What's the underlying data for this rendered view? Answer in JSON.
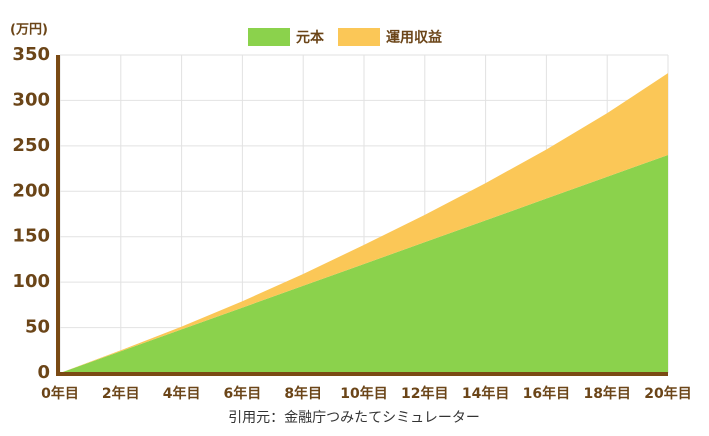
{
  "chart_data": {
    "type": "stacked-area",
    "y_axis_label": "(万円)",
    "caption": "引用元：金融庁つみたてシミュレーター",
    "x": [
      0,
      2,
      4,
      6,
      8,
      10,
      12,
      14,
      16,
      18,
      20
    ],
    "xlim": [
      0,
      20
    ],
    "xticks": [
      {
        "value": 0,
        "label": "0年目"
      },
      {
        "value": 2,
        "label": "2年目"
      },
      {
        "value": 4,
        "label": "4年目"
      },
      {
        "value": 6,
        "label": "6年目"
      },
      {
        "value": 8,
        "label": "8年目"
      },
      {
        "value": 10,
        "label": "10年目"
      },
      {
        "value": 12,
        "label": "12年目"
      },
      {
        "value": 14,
        "label": "14年目"
      },
      {
        "value": 16,
        "label": "16年目"
      },
      {
        "value": 18,
        "label": "18年目"
      },
      {
        "value": 20,
        "label": "20年目"
      }
    ],
    "ylim": [
      0,
      350
    ],
    "yticks": [
      0,
      50,
      100,
      150,
      200,
      250,
      300,
      350
    ],
    "grid": true,
    "legend": "top",
    "series": [
      {
        "name": "元本",
        "color": "#8bd24c",
        "values": [
          0,
          24,
          48,
          72,
          96,
          120,
          144,
          168,
          192,
          216,
          240
        ]
      },
      {
        "name": "運用収益",
        "color": "#fbc757",
        "values": [
          0,
          1,
          3,
          7,
          13,
          21,
          30,
          41,
          54,
          70,
          90
        ]
      }
    ]
  }
}
